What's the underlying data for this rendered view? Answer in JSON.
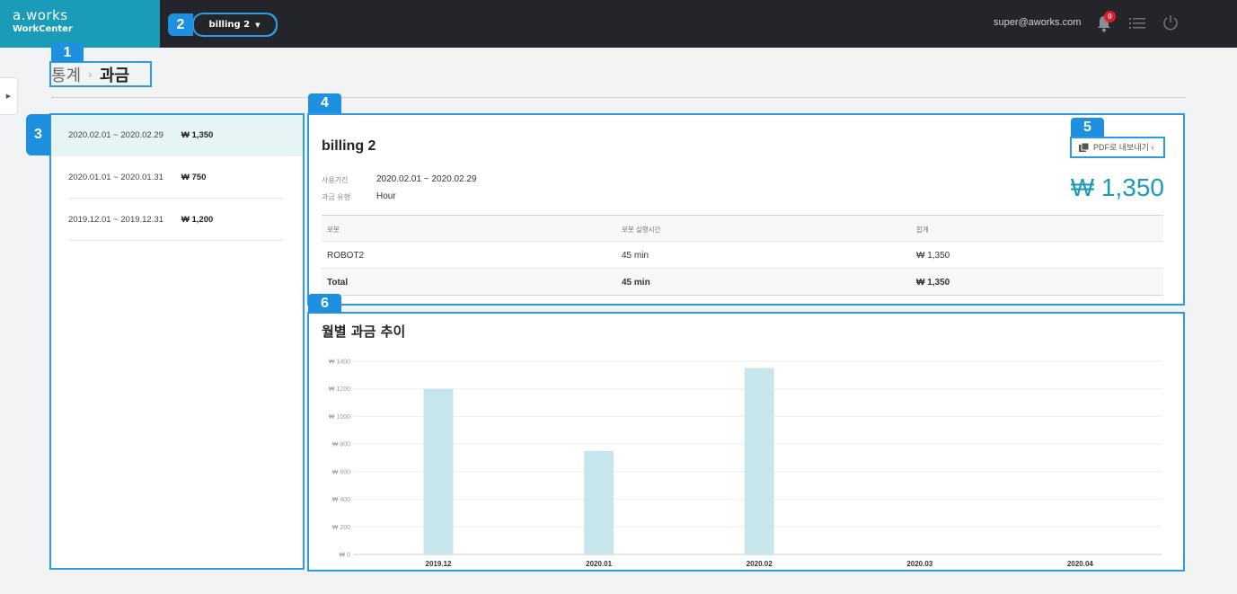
{
  "header": {
    "brand": "a.works",
    "brand_sub": "WorkCenter",
    "project": "billing 2",
    "user_email": "super@aworks.com",
    "notification_count": "0"
  },
  "breadcrumb": {
    "parent": "통계",
    "current": "과금"
  },
  "annotations": [
    "1",
    "2",
    "3",
    "4",
    "5",
    "6"
  ],
  "periods": [
    {
      "range": "2020.02.01 ~ 2020.02.29",
      "amount": "₩ 1,350",
      "selected": true
    },
    {
      "range": "2020.01.01 ~ 2020.01.31",
      "amount": "₩ 750"
    },
    {
      "range": "2019.12.01 ~ 2019.12.31",
      "amount": "₩ 1,200"
    }
  ],
  "detail": {
    "title": "billing 2",
    "pdf_label": "PDF로 내보내기 ›",
    "period_label": "사용기간",
    "period_value": "2020.02.01 ~ 2020.02.29",
    "type_label": "과금 유형",
    "type_value": "Hour",
    "total": "₩ 1,350",
    "table": {
      "headers": [
        "로봇",
        "로봇 실행시간",
        "합계"
      ],
      "rows": [
        [
          "ROBOT2",
          "45 min",
          "₩ 1,350"
        ]
      ],
      "total_row": [
        "Total",
        "45 min",
        "₩ 1,350"
      ]
    }
  },
  "chart_data": {
    "type": "bar",
    "title": "월별 과금 추이",
    "categories": [
      "2019.12",
      "2020.01",
      "2020.02",
      "2020.03",
      "2020.04"
    ],
    "values": [
      1200,
      750,
      1350,
      0,
      0
    ],
    "ylim": [
      0,
      1400
    ],
    "yticks": [
      "₩ 0",
      "₩ 200",
      "₩ 400",
      "₩ 600",
      "₩ 800",
      "₩ 1000",
      "₩ 1200",
      "₩ 1400"
    ],
    "bar_color": "#c7e6ec",
    "grid": true
  },
  "colors": {
    "accent": "#1a9bb8",
    "topbar": "#23252a",
    "annotation": "#1e90e0"
  }
}
